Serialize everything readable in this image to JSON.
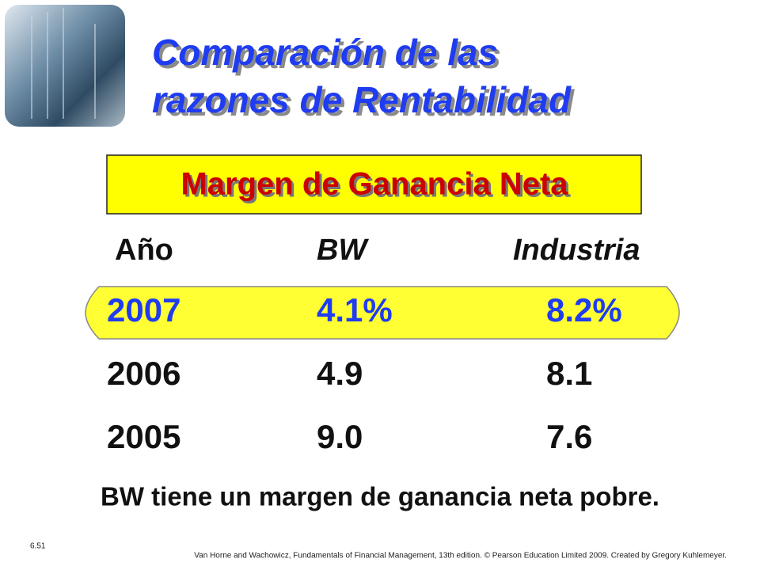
{
  "header": {
    "title_lines": [
      "Comparación de las",
      "razones de Rentabilidad"
    ]
  },
  "subtitle": "Margen de Ganancia Neta",
  "table": {
    "columns": [
      "Año",
      "BW",
      "Industria"
    ],
    "rows": [
      [
        "2007",
        "4.1%",
        "8.2%"
      ],
      [
        "2006",
        "4.9",
        "8.1"
      ],
      [
        "2005",
        "9.0",
        "7.6"
      ]
    ]
  },
  "conclusion": "BW tiene un margen de ganancia neta pobre.",
  "footer": {
    "slide_number": "6.51",
    "citation": "Van Horne and Wachowicz, Fundamentals of Financial Management, 13th edition. © Pearson Education Limited 2009. Created by Gregory Kuhlemeyer."
  }
}
